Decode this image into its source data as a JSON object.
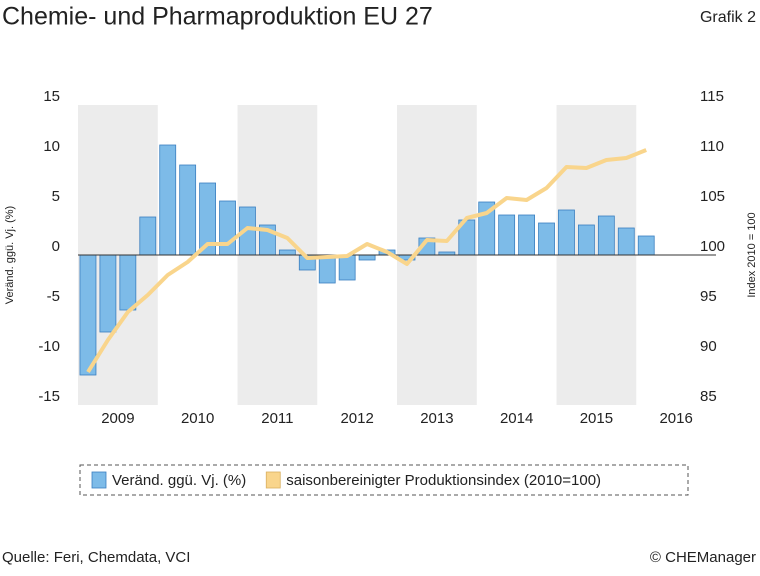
{
  "title": "Chemie- und Pharmaproduktion EU 27",
  "label": "Grafik 2",
  "source": "Quelle: Feri, Chemdata, VCI",
  "copyright": "© CHEManager",
  "chart_data": {
    "type": "bar-line",
    "ylabel": "Veränd. ggü. Vj. (%)",
    "y2label": "Index 2010 = 100",
    "xlim": [
      2009,
      2017
    ],
    "xticks": [
      {
        "value": 2009.5,
        "label": "2009"
      },
      {
        "value": 2010.5,
        "label": "2010"
      },
      {
        "value": 2011.5,
        "label": "2011"
      },
      {
        "value": 2012.5,
        "label": "2012"
      },
      {
        "value": 2013.5,
        "label": "2013"
      },
      {
        "value": 2014.5,
        "label": "2014"
      },
      {
        "value": 2015.5,
        "label": "2015"
      },
      {
        "value": 2016.5,
        "label": "2016"
      }
    ],
    "ylim": [
      -15,
      15
    ],
    "yticks": [
      15,
      10,
      5,
      0,
      -5,
      -10,
      -15
    ],
    "y2lim": [
      85,
      115
    ],
    "y2ticks": [
      115,
      110,
      105,
      100,
      95,
      90,
      85
    ],
    "x": [
      2009.125,
      2009.375,
      2009.625,
      2009.875,
      2010.125,
      2010.375,
      2010.625,
      2010.875,
      2011.125,
      2011.375,
      2011.625,
      2011.875,
      2012.125,
      2012.375,
      2012.625,
      2012.875,
      2013.125,
      2013.375,
      2013.625,
      2013.875,
      2014.125,
      2014.375,
      2014.625,
      2014.875,
      2015.125,
      2015.375,
      2015.625,
      2015.875,
      2016.125
    ],
    "series": [
      {
        "name": "Veränd. ggü. Vj. (%)",
        "color": "#7dbbe8",
        "type": "bar",
        "values": [
          -12,
          -7.7,
          -5.5,
          3.8,
          11,
          9,
          7.2,
          5.4,
          4.8,
          3.0,
          0.5,
          -1.5,
          -2.8,
          -2.5,
          -0.5,
          0.5,
          -0.5,
          1.7,
          0.3,
          3.5,
          5.3,
          4.0,
          4.0,
          3.2,
          4.5,
          3.0,
          3.9,
          2.7,
          1.9
        ]
      },
      {
        "name": "saisonbereinigter Produktionsindex (2010=100)",
        "color": "#f9d58c",
        "type": "line",
        "axis": "y2",
        "values": [
          88.3,
          91.5,
          94.3,
          96,
          98,
          99.3,
          101.1,
          101.1,
          102.7,
          102.5,
          101.7,
          99.7,
          99.8,
          99.9,
          101.1,
          100.3,
          99.1,
          101.5,
          101.4,
          103.7,
          104.2,
          105.7,
          105.5,
          106.7,
          108.8,
          108.7,
          109.5,
          109.7,
          110.5
        ]
      }
    ]
  }
}
